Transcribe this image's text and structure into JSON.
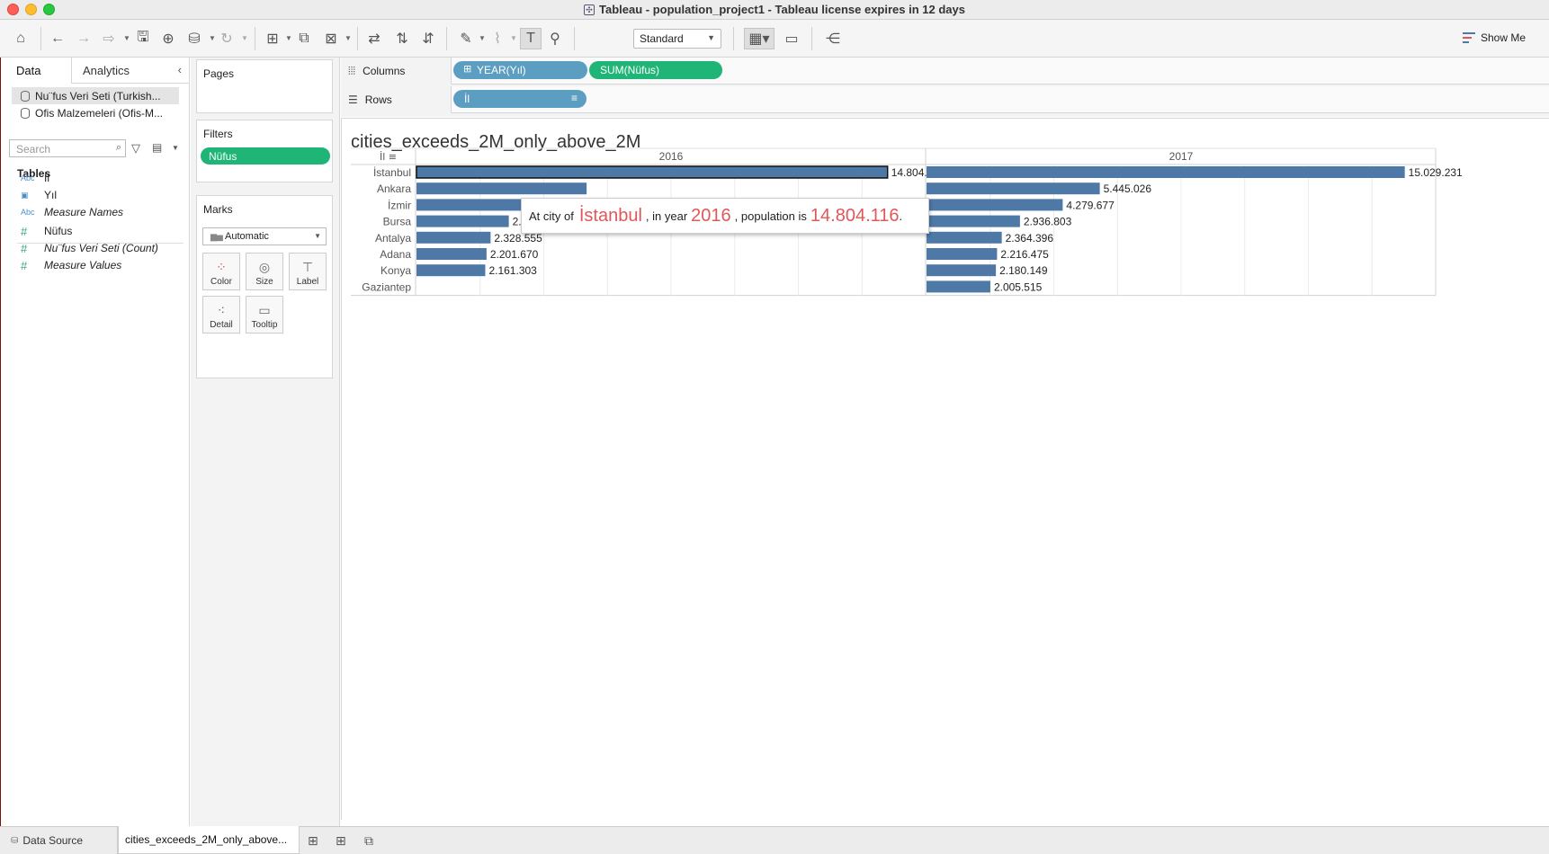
{
  "window": {
    "title": "Tableau - population_project1 - Tableau license expires in 12 days"
  },
  "toolbar": {
    "fit_mode": "Standard",
    "show_me": "Show Me"
  },
  "data_pane": {
    "tabs": [
      "Data",
      "Analytics"
    ],
    "datasources": [
      "Nu¨fus Veri Seti (Turkish...",
      "Ofis Malzemeleri (Ofis-M..."
    ],
    "search_placeholder": "Search",
    "tables_header": "Tables",
    "dimensions": [
      {
        "icon": "Abc",
        "name": "İl"
      },
      {
        "icon": "date",
        "name": "Yıl"
      },
      {
        "icon": "Abc",
        "name": "Measure Names"
      }
    ],
    "measures": [
      {
        "icon": "#",
        "name": "Nüfus"
      },
      {
        "icon": "#",
        "name": "Nu¨fus Veri Seti (Count)"
      },
      {
        "icon": "#",
        "name": "Measure Values"
      }
    ]
  },
  "cards": {
    "pages_title": "Pages",
    "filters_title": "Filters",
    "filter_pill": "Nüfus",
    "marks_title": "Marks",
    "marks_type": "Automatic",
    "mark_buttons": [
      "Color",
      "Size",
      "Label",
      "Detail",
      "Tooltip"
    ]
  },
  "shelves": {
    "columns_label": "Columns",
    "rows_label": "Rows",
    "columns_pills": [
      "YEAR(Yıl)",
      "SUM(Nüfus)"
    ],
    "rows_pills": [
      "İl"
    ]
  },
  "sheet": {
    "title": "cities_exceeds_2M_only_above_2M"
  },
  "tooltip": {
    "prefix": "At city of",
    "city": "İstanbul",
    "mid": ", in year",
    "year": "2016",
    "mid2": ", population is",
    "value": "14.804.116",
    "suffix": "."
  },
  "chart_data": {
    "type": "bar",
    "orientation": "horizontal",
    "categories": [
      "İstanbul",
      "Ankara",
      "İzmir",
      "Bursa",
      "Antalya",
      "Adana",
      "Konya",
      "Gaziantep"
    ],
    "series": [
      {
        "name": "2016",
        "values": [
          14804116,
          5346518,
          4223545,
          2901396,
          2328555,
          2201670,
          2161303,
          null
        ],
        "labels": [
          "14.804.116",
          "",
          "",
          "2.901.396",
          "2.328.555",
          "2.201.670",
          "2.161.303",
          ""
        ]
      },
      {
        "name": "2017",
        "values": [
          15029231,
          5445026,
          4279677,
          2936803,
          2364396,
          2216475,
          2180149,
          2005515
        ],
        "labels": [
          "15.029.231",
          "5.445.026",
          "4.279.677",
          "2.936.803",
          "2.364.396",
          "2.216.475",
          "2.180.149",
          "2.005.515"
        ]
      }
    ],
    "xlim": [
      0,
      16000000
    ],
    "bar_color": "#4e79a7",
    "highlight": {
      "category": "İstanbul",
      "series": "2016"
    }
  },
  "bottom_tabs": {
    "data_source": "Data Source",
    "sheet": "cities_exceeds_2M_only_above..."
  }
}
